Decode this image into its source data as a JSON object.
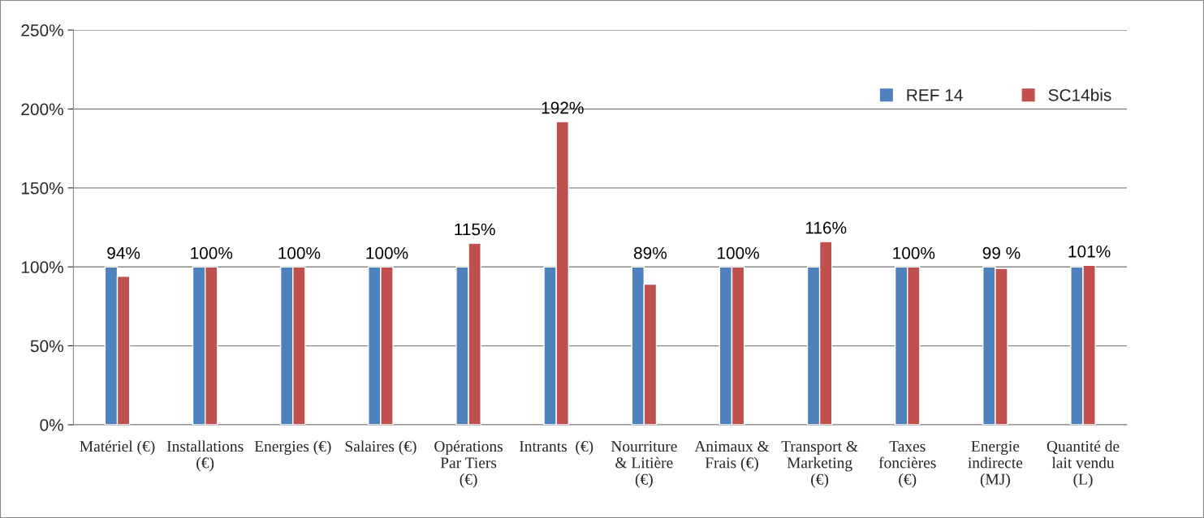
{
  "chart_data": {
    "type": "bar",
    "categories": [
      "Matériel (€)",
      "Installations\n(€)",
      "Energies (€)",
      "Salaires (€)",
      "Opérations\nPar Tiers\n(€)",
      "Intrants  (€)",
      "Nourriture\n& Litière\n(€)",
      "Animaux &\nFrais (€)",
      "Transport &\nMarketing\n(€)",
      "Taxes\nfoncières\n(€)",
      "Energie\nindirecte\n(MJ)",
      "Quantité de\nlait vendu\n(L)"
    ],
    "series": [
      {
        "name": "REF 14",
        "color": "#4f81bd",
        "values": [
          100,
          100,
          100,
          100,
          100,
          100,
          100,
          100,
          100,
          100,
          100,
          100
        ]
      },
      {
        "name": "SC14bis",
        "color": "#c0504d",
        "values": [
          94,
          100,
          100,
          100,
          115,
          192,
          89,
          100,
          116,
          100,
          99,
          101
        ],
        "value_labels": [
          "94%",
          "100%",
          "100%",
          "100%",
          "115%",
          "192%",
          "89%",
          "100%",
          "116%",
          "100%",
          "99 %",
          "101%"
        ]
      }
    ],
    "ylim": [
      0,
      250
    ],
    "yticks": [
      {
        "value": 0,
        "label": "0%"
      },
      {
        "value": 50,
        "label": "50%"
      },
      {
        "value": 100,
        "label": "100%"
      },
      {
        "value": 150,
        "label": "150%"
      },
      {
        "value": 200,
        "label": "200%"
      },
      {
        "value": 250,
        "label": "250%"
      }
    ],
    "grid": "y",
    "legend": "top right"
  }
}
